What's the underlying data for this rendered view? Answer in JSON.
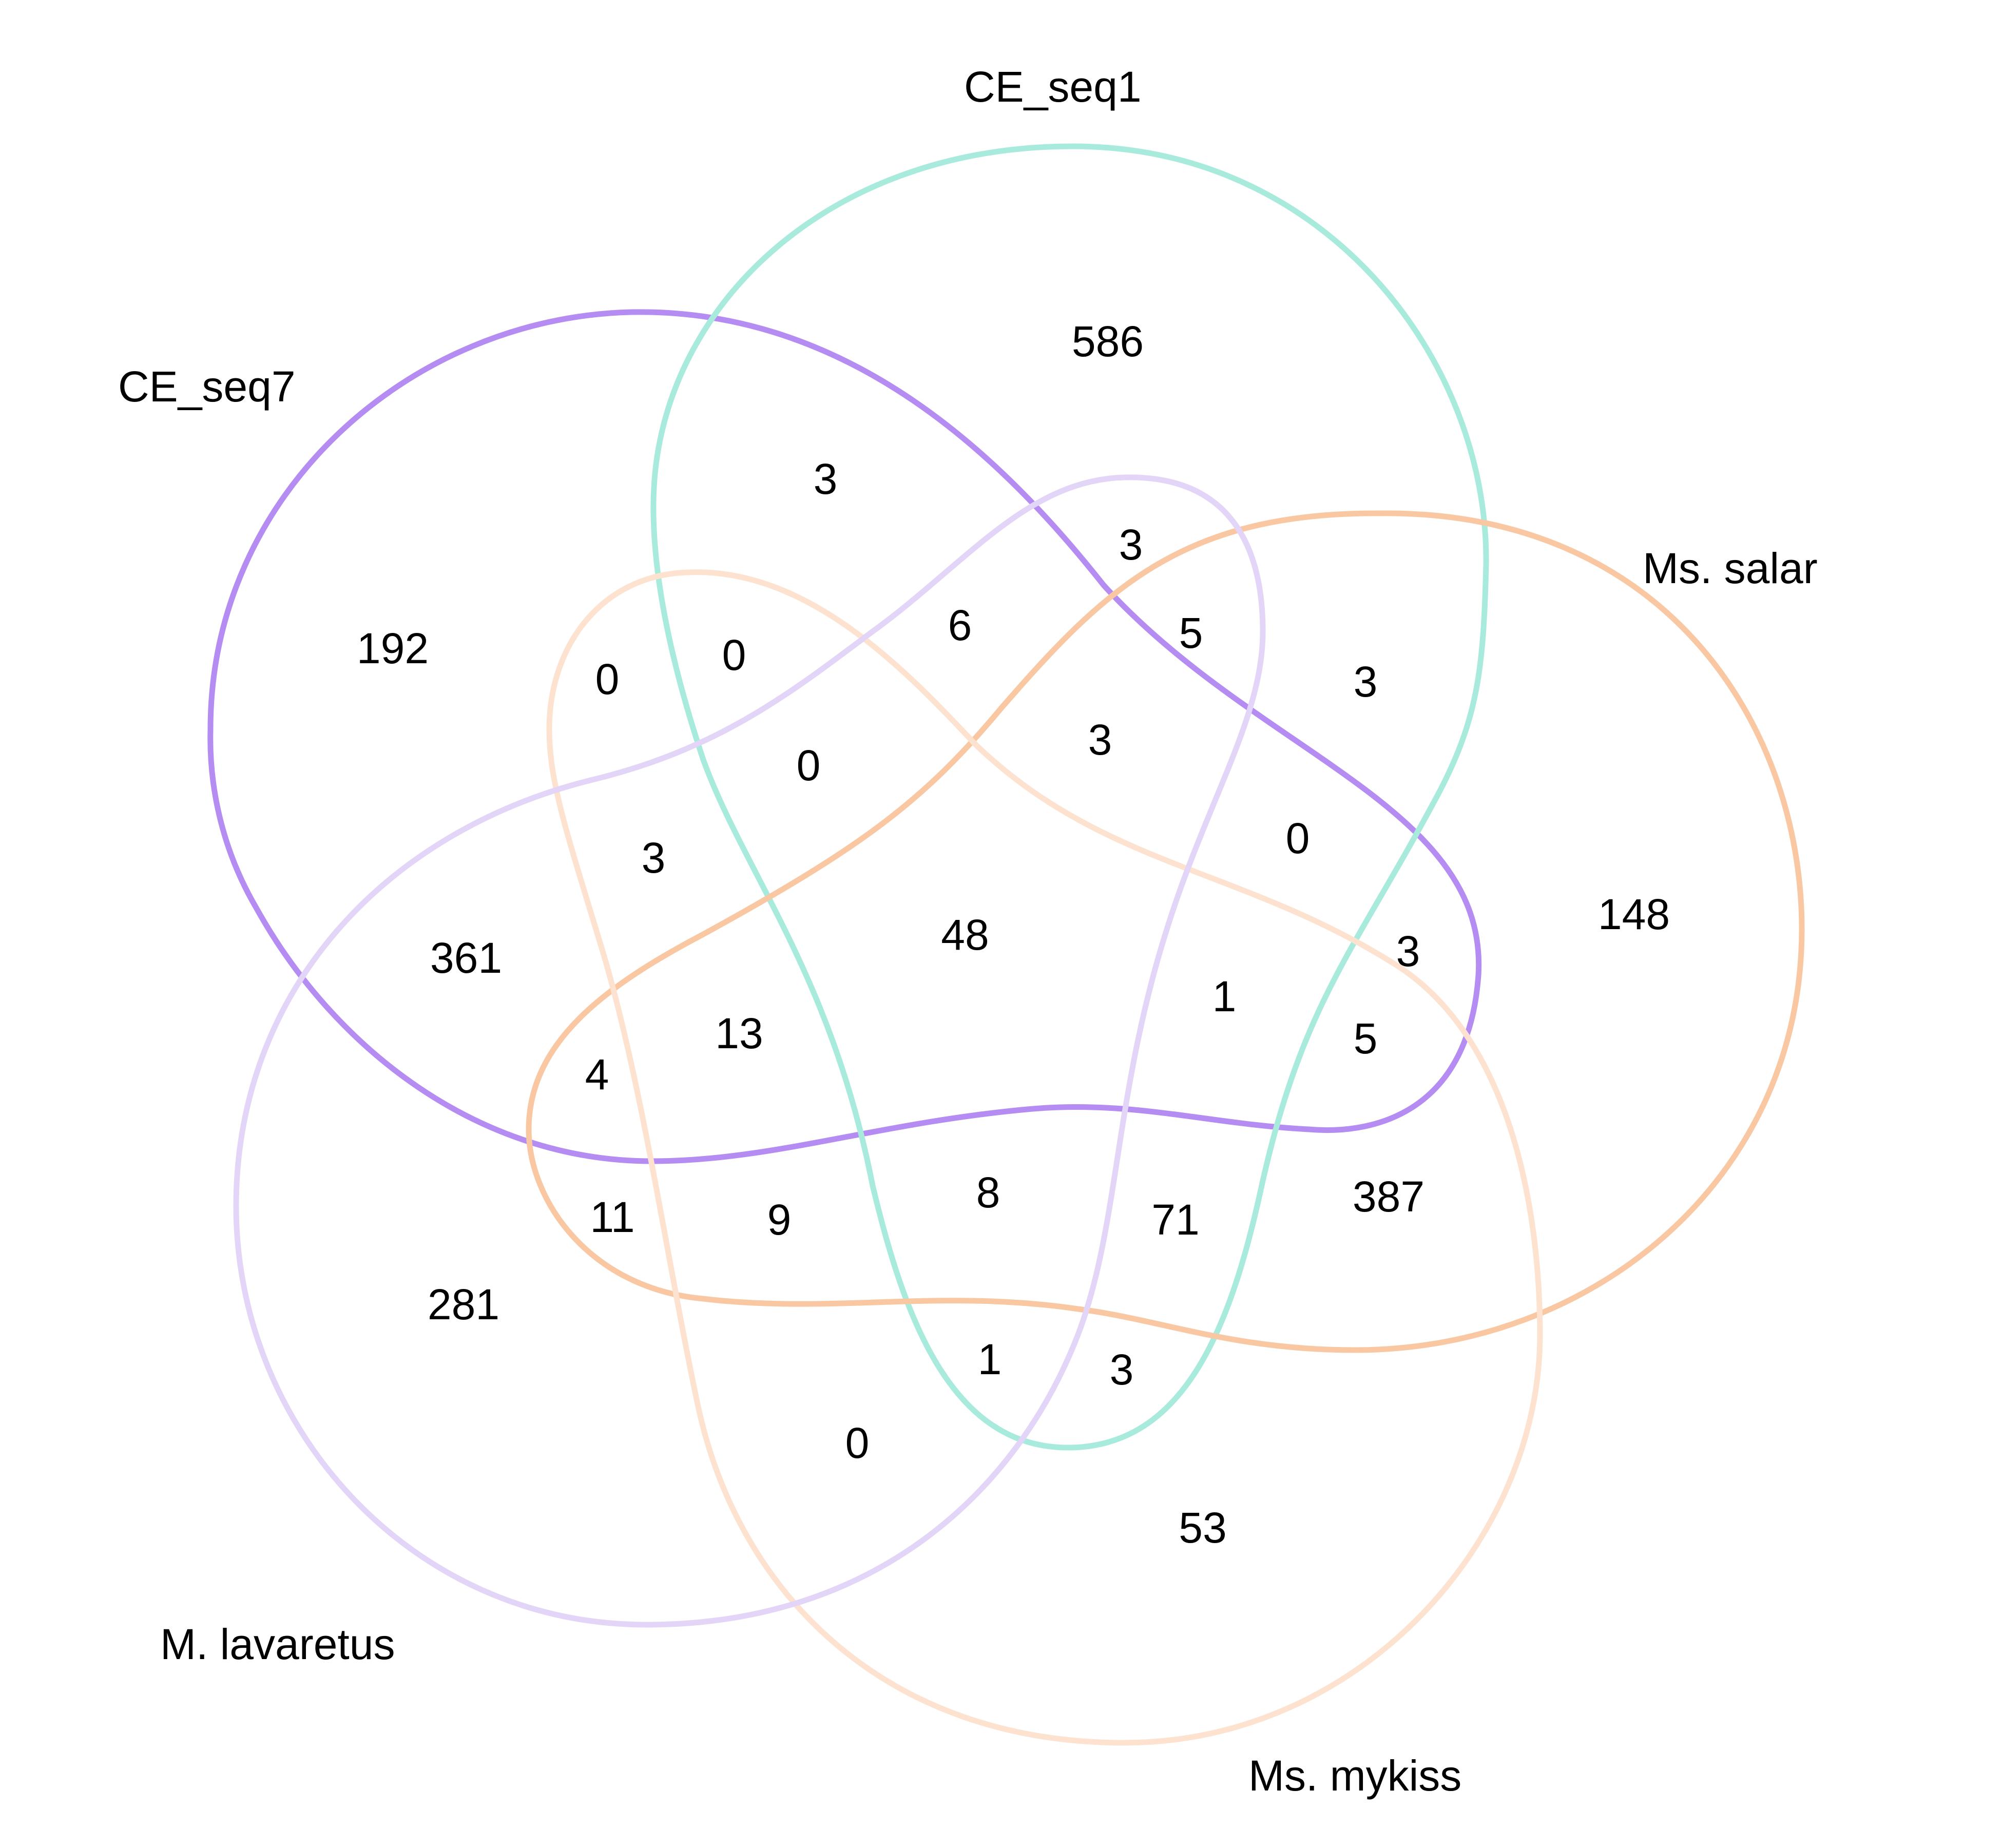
{
  "sets": [
    {
      "name": "CE_seq1",
      "color": "#A8EBDC"
    },
    {
      "name": "Ms. salar",
      "color": "#F9C8A2"
    },
    {
      "name": "Ms. mykiss",
      "color": "#FDE2D0"
    },
    {
      "name": "M. lavaretus",
      "color": "#E3D5F8"
    },
    {
      "name": "CE_seq7",
      "color": "#B48CF2"
    }
  ],
  "labels": {
    "ce_seq1": "CE_seq1",
    "ms_salar": "Ms. salar",
    "ms_mykiss": "Ms. mykiss",
    "m_lavaretus": "M. lavaretus",
    "ce_seq7": "CE_seq7"
  },
  "counts": {
    "only_ce_seq1": "586",
    "only_ce_seq7": "192",
    "only_ms_salar": "148",
    "only_m_lavaretus": "281",
    "only_ms_mykiss": "53",
    "r_3a": "3",
    "r_3b": "3",
    "r_6": "6",
    "r_5a": "5",
    "r_3c": "3",
    "r_0a": "0",
    "r_0b": "0",
    "r_0c": "0",
    "r_3d": "3",
    "r_0d": "0",
    "r_3e": "3",
    "r_361": "361",
    "r_48": "48",
    "r_1a": "1",
    "r_3f": "3",
    "r_13": "13",
    "r_5b": "5",
    "r_4": "4",
    "r_11": "11",
    "r_9": "9",
    "r_8": "8",
    "r_71": "71",
    "r_387": "387",
    "r_1b": "1",
    "r_3g": "3",
    "r_0e": "0"
  }
}
